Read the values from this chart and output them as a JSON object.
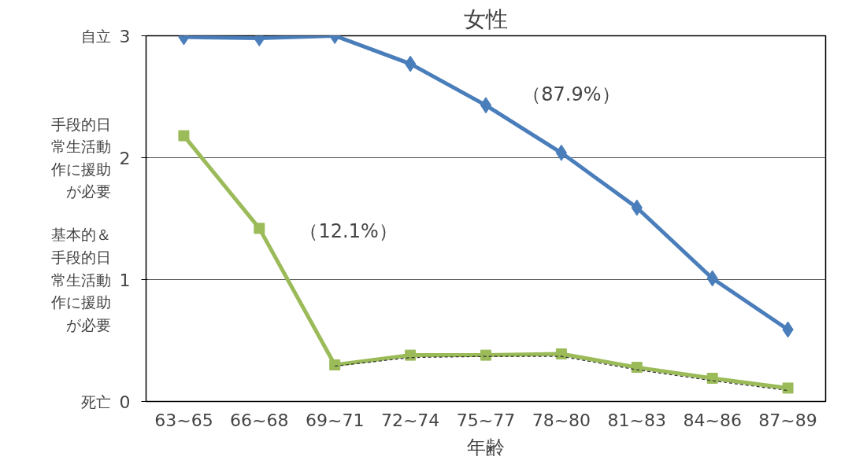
{
  "chart_data": {
    "type": "line",
    "title": "女性",
    "xlabel": "年齢",
    "categories": [
      "63~65",
      "66~68",
      "69~71",
      "72~74",
      "75~77",
      "78~80",
      "81~83",
      "84~86",
      "87~89"
    ],
    "series": [
      {
        "color": "#4a7ebb",
        "marker": "diamond",
        "line_style": "solid",
        "values": [
          2.99,
          2.98,
          3.0,
          2.77,
          2.43,
          2.04,
          1.59,
          1.01,
          0.59
        ]
      },
      {
        "color": "#9bbb59",
        "marker": "square",
        "line_style": "solid",
        "values": [
          2.18,
          1.42,
          0.3,
          0.38,
          0.38,
          0.39,
          0.28,
          0.19,
          0.11
        ]
      },
      {
        "color": "#333333",
        "marker": "none",
        "line_style": "dashed",
        "values": [
          null,
          null,
          0.29,
          0.36,
          0.37,
          0.37,
          0.26,
          0.17,
          0.09
        ]
      }
    ],
    "ylim": [
      0,
      3
    ],
    "yticks": [
      0,
      1,
      2,
      3
    ],
    "grid": "y",
    "annotations": [
      "（87.9%）",
      "（12.1%）",
      "自立",
      "手段的日常生活動作に援助が必要",
      "基本的＆手段的日常生活動作に援助が必要",
      "死亡"
    ]
  }
}
